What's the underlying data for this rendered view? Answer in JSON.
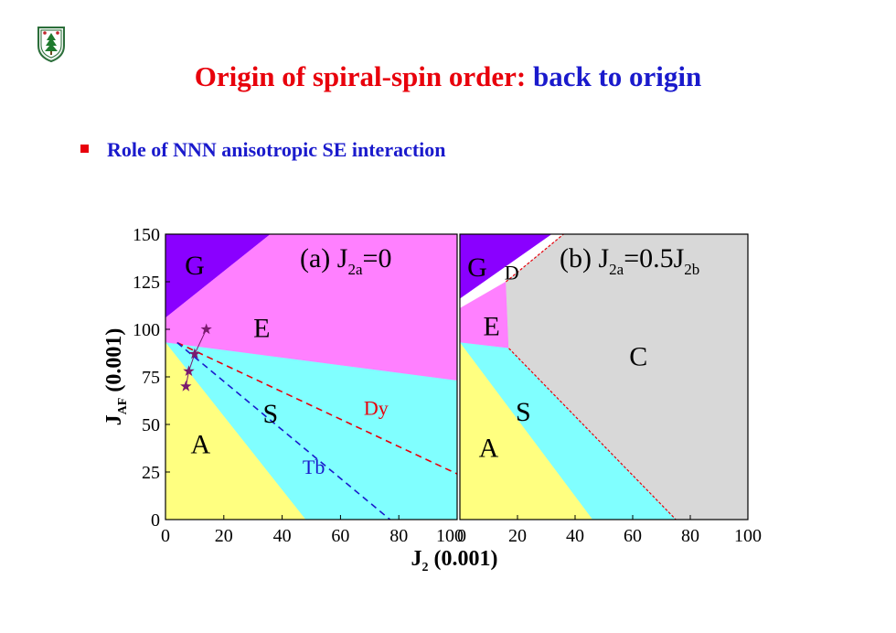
{
  "slide": {
    "title_red": "Origin of spiral-spin order:",
    "title_blue": "back to origin",
    "bullet": "Role of NNN anisotropic SE interaction",
    "colors": {
      "red": "#e8000b",
      "blue": "#1a1acc",
      "bullet_square": "#e8000b"
    }
  },
  "chart_data": [
    {
      "type": "area",
      "panel_label": "(a) J2a=0",
      "panel_label_parts": [
        "(a) J",
        "2a",
        "=0"
      ],
      "x_range": [
        0,
        100
      ],
      "y_range": [
        0,
        150
      ],
      "x_ticks": [
        "0",
        "20",
        "40",
        "60",
        "80",
        "100"
      ],
      "y_ticks": [
        "0",
        "25",
        "50",
        "75",
        "100",
        "125",
        "150"
      ],
      "ylabel_parts": [
        "J",
        "AF",
        " (0.001)"
      ],
      "regions": [
        {
          "name": "G",
          "color": "#8a00ff",
          "label_at": [
            10,
            134
          ],
          "polygon": [
            [
              0,
              150
            ],
            [
              36,
              150
            ],
            [
              0,
              106
            ]
          ]
        },
        {
          "name": "E",
          "color": "#ff80ff",
          "label_at": [
            33,
            101
          ],
          "polygon": [
            [
              0,
              106
            ],
            [
              36,
              150
            ],
            [
              100,
              150
            ],
            [
              100,
              73
            ],
            [
              0,
              93
            ]
          ]
        },
        {
          "name": "S",
          "color": "#80ffff",
          "label_at": [
            36,
            56
          ],
          "polygon": [
            [
              0,
              93
            ],
            [
              100,
              73
            ],
            [
              100,
              0
            ],
            [
              48,
              0
            ]
          ]
        },
        {
          "name": "A",
          "color": "#ffff80",
          "label_at": [
            12,
            40
          ],
          "polygon": [
            [
              0,
              0
            ],
            [
              48,
              0
            ],
            [
              0,
              93
            ]
          ]
        }
      ],
      "lines": [
        {
          "name": "Dy",
          "color": "#e8000b",
          "dash": true,
          "points": [
            [
              4,
              93
            ],
            [
              100,
              24
            ]
          ],
          "label_at": [
            68,
            55
          ]
        },
        {
          "name": "Tb",
          "color": "#1a1acc",
          "dash": true,
          "points": [
            [
              4,
              93
            ],
            [
              77,
              0
            ]
          ],
          "label_at": [
            47,
            24
          ]
        }
      ],
      "markers": {
        "symbol": "star",
        "color": "#7a1a6e",
        "points": [
          [
            7,
            70
          ],
          [
            8,
            78
          ],
          [
            10,
            87
          ],
          [
            14,
            100
          ]
        ],
        "connecting_line": [
          [
            7,
            70
          ],
          [
            8,
            78
          ],
          [
            10,
            87
          ],
          [
            14,
            100
          ]
        ]
      }
    },
    {
      "type": "area",
      "panel_label": "(b) J2a=0.5J2b",
      "panel_label_parts": [
        "(b) J",
        "2a",
        "=0.5J",
        "2b"
      ],
      "x_range": [
        0,
        100
      ],
      "y_range": [
        0,
        150
      ],
      "x_ticks": [
        "0",
        "20",
        "40",
        "60",
        "80",
        "100"
      ],
      "regions": [
        {
          "name": "G",
          "color": "#8a00ff",
          "label_at": [
            6,
            133
          ],
          "polygon": [
            [
              0,
              150
            ],
            [
              32,
              150
            ],
            [
              0,
              116
            ]
          ]
        },
        {
          "name": "D",
          "color": "#ffffff",
          "label_at": [
            18,
            130
          ],
          "polygon": [
            [
              0,
              116
            ],
            [
              32,
              150
            ],
            [
              36,
              150
            ],
            [
              16,
              125
            ],
            [
              0,
              111
            ]
          ]
        },
        {
          "name": "E",
          "color": "#ff80ff",
          "label_at": [
            11,
            102
          ],
          "polygon": [
            [
              0,
              111
            ],
            [
              16,
              125
            ],
            [
              17,
              90
            ],
            [
              0,
              93
            ]
          ]
        },
        {
          "name": "C",
          "color": "#d8d8d8",
          "label_at": [
            62,
            86
          ],
          "polygon": [
            [
              16,
              125
            ],
            [
              36,
              150
            ],
            [
              100,
              150
            ],
            [
              100,
              0
            ],
            [
              75,
              0
            ],
            [
              17,
              90
            ]
          ]
        },
        {
          "name": "S",
          "color": "#80ffff",
          "label_at": [
            22,
            57
          ],
          "polygon": [
            [
              0,
              93
            ],
            [
              17,
              90
            ],
            [
              75,
              0
            ],
            [
              46,
              0
            ]
          ]
        },
        {
          "name": "A",
          "color": "#ffff80",
          "label_at": [
            10,
            38
          ],
          "polygon": [
            [
              0,
              0
            ],
            [
              46,
              0
            ],
            [
              0,
              93
            ]
          ]
        }
      ],
      "boundaries": [
        {
          "color": "#e8000b",
          "dash": true,
          "points": [
            [
              16,
              125
            ],
            [
              36,
              150
            ]
          ]
        },
        {
          "color": "#e8000b",
          "dash": true,
          "points": [
            [
              17,
              90
            ],
            [
              75,
              0
            ]
          ]
        }
      ]
    }
  ],
  "shared_axis": {
    "xlabel_parts": [
      "J",
      "2",
      " (0.001)"
    ]
  }
}
